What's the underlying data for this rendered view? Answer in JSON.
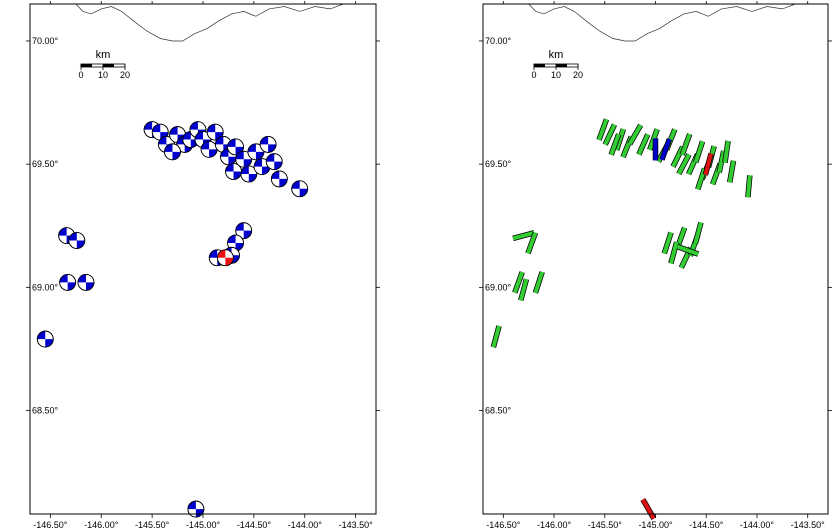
{
  "colors": {
    "frame": "#000000",
    "coast": "#333333",
    "beachball_primary": "#0000cc",
    "beachball_highlight": "#ee1111",
    "bar_primary": "#33cc33",
    "bar_highlight_blue": "#0000cc",
    "bar_highlight_red": "#dd1111"
  },
  "map": {
    "lon_range": [
      -146.7,
      -143.3
    ],
    "lat_range": [
      68.08,
      70.15
    ],
    "lon_ticks": [
      "-146.50°",
      "-146.00°",
      "-145.50°",
      "-145.00°",
      "-144.50°",
      "-144.00°",
      "-143.50°"
    ],
    "lat_ticks": [
      "70.00°",
      "69.50°",
      "69.00°",
      "68.50°"
    ],
    "scale_bar": {
      "title": "km",
      "labels": [
        "0",
        "10",
        "20"
      ]
    }
  },
  "panels": [
    {
      "name": "left-map",
      "symbol": "beachball",
      "events": [
        {
          "lon": -145.5,
          "lat": 69.64
        },
        {
          "lon": -145.42,
          "lat": 69.63
        },
        {
          "lon": -145.36,
          "lat": 69.58
        },
        {
          "lon": -145.25,
          "lat": 69.62
        },
        {
          "lon": -145.18,
          "lat": 69.58
        },
        {
          "lon": -145.12,
          "lat": 69.6
        },
        {
          "lon": -145.05,
          "lat": 69.64
        },
        {
          "lon": -145.0,
          "lat": 69.6
        },
        {
          "lon": -144.94,
          "lat": 69.56
        },
        {
          "lon": -144.88,
          "lat": 69.63
        },
        {
          "lon": -144.8,
          "lat": 69.58
        },
        {
          "lon": -144.75,
          "lat": 69.53
        },
        {
          "lon": -144.68,
          "lat": 69.57
        },
        {
          "lon": -144.6,
          "lat": 69.52
        },
        {
          "lon": -144.55,
          "lat": 69.46
        },
        {
          "lon": -144.48,
          "lat": 69.55
        },
        {
          "lon": -144.42,
          "lat": 69.49
        },
        {
          "lon": -144.36,
          "lat": 69.58
        },
        {
          "lon": -144.3,
          "lat": 69.51
        },
        {
          "lon": -144.25,
          "lat": 69.44
        },
        {
          "lon": -144.7,
          "lat": 69.47
        },
        {
          "lon": -145.3,
          "lat": 69.55
        },
        {
          "lon": -144.05,
          "lat": 69.4
        },
        {
          "lon": -146.34,
          "lat": 69.21
        },
        {
          "lon": -146.24,
          "lat": 69.19
        },
        {
          "lon": -146.33,
          "lat": 69.02
        },
        {
          "lon": -146.15,
          "lat": 69.02
        },
        {
          "lon": -146.55,
          "lat": 68.79
        },
        {
          "lon": -144.6,
          "lat": 69.23
        },
        {
          "lon": -144.68,
          "lat": 69.18
        },
        {
          "lon": -144.72,
          "lat": 69.13
        },
        {
          "lon": -144.86,
          "lat": 69.12
        },
        {
          "lon": -144.78,
          "lat": 69.12,
          "highlight": true
        },
        {
          "lon": -145.07,
          "lat": 68.1
        }
      ]
    },
    {
      "name": "right-map",
      "symbol": "bar",
      "events": [
        {
          "lon": -145.52,
          "lat": 69.64,
          "az": 20
        },
        {
          "lon": -145.45,
          "lat": 69.62,
          "az": 25
        },
        {
          "lon": -145.35,
          "lat": 69.6,
          "az": 18
        },
        {
          "lon": -145.28,
          "lat": 69.57,
          "az": 22
        },
        {
          "lon": -145.2,
          "lat": 69.62,
          "az": 30
        },
        {
          "lon": -145.12,
          "lat": 69.58,
          "az": 24
        },
        {
          "lon": -145.02,
          "lat": 69.6,
          "az": 20
        },
        {
          "lon": -144.92,
          "lat": 69.55,
          "az": 28
        },
        {
          "lon": -144.85,
          "lat": 69.6,
          "az": 22
        },
        {
          "lon": -144.78,
          "lat": 69.53,
          "az": 26
        },
        {
          "lon": -144.7,
          "lat": 69.58,
          "az": 20
        },
        {
          "lon": -144.63,
          "lat": 69.5,
          "az": 24
        },
        {
          "lon": -144.57,
          "lat": 69.55,
          "az": 18
        },
        {
          "lon": -144.5,
          "lat": 69.48,
          "az": 22
        },
        {
          "lon": -144.45,
          "lat": 69.53,
          "az": 15
        },
        {
          "lon": -144.4,
          "lat": 69.46,
          "az": 20
        },
        {
          "lon": -144.35,
          "lat": 69.51,
          "az": 12
        },
        {
          "lon": -144.3,
          "lat": 69.55,
          "az": 8
        },
        {
          "lon": -144.25,
          "lat": 69.47,
          "az": 10
        },
        {
          "lon": -144.72,
          "lat": 69.5,
          "az": 28
        },
        {
          "lon": -145.4,
          "lat": 69.58,
          "az": 20
        },
        {
          "lon": -144.55,
          "lat": 69.44,
          "az": 18
        },
        {
          "lon": -144.08,
          "lat": 69.41,
          "az": 5
        },
        {
          "lon": -145.0,
          "lat": 69.56,
          "az": 0,
          "highlight": "blue"
        },
        {
          "lon": -144.9,
          "lat": 69.56,
          "az": 20,
          "highlight": "blue"
        },
        {
          "lon": -144.48,
          "lat": 69.5,
          "az": 15,
          "highlight": "red"
        },
        {
          "lon": -146.3,
          "lat": 69.21,
          "az": 75
        },
        {
          "lon": -146.22,
          "lat": 69.18,
          "az": 20
        },
        {
          "lon": -146.35,
          "lat": 69.02,
          "az": 20
        },
        {
          "lon": -146.3,
          "lat": 68.99,
          "az": 15
        },
        {
          "lon": -146.15,
          "lat": 69.02,
          "az": 18
        },
        {
          "lon": -146.57,
          "lat": 68.8,
          "az": 15
        },
        {
          "lon": -144.75,
          "lat": 69.2,
          "az": 20
        },
        {
          "lon": -144.82,
          "lat": 69.14,
          "az": 15
        },
        {
          "lon": -144.7,
          "lat": 69.12,
          "az": 25
        },
        {
          "lon": -144.62,
          "lat": 69.17,
          "az": 20
        },
        {
          "lon": -144.58,
          "lat": 69.22,
          "az": 15
        },
        {
          "lon": -144.88,
          "lat": 69.18,
          "az": 18
        },
        {
          "lon": -144.68,
          "lat": 69.15,
          "az": 110
        },
        {
          "lon": -145.07,
          "lat": 68.1,
          "az": 150,
          "highlight": "red"
        }
      ]
    }
  ]
}
